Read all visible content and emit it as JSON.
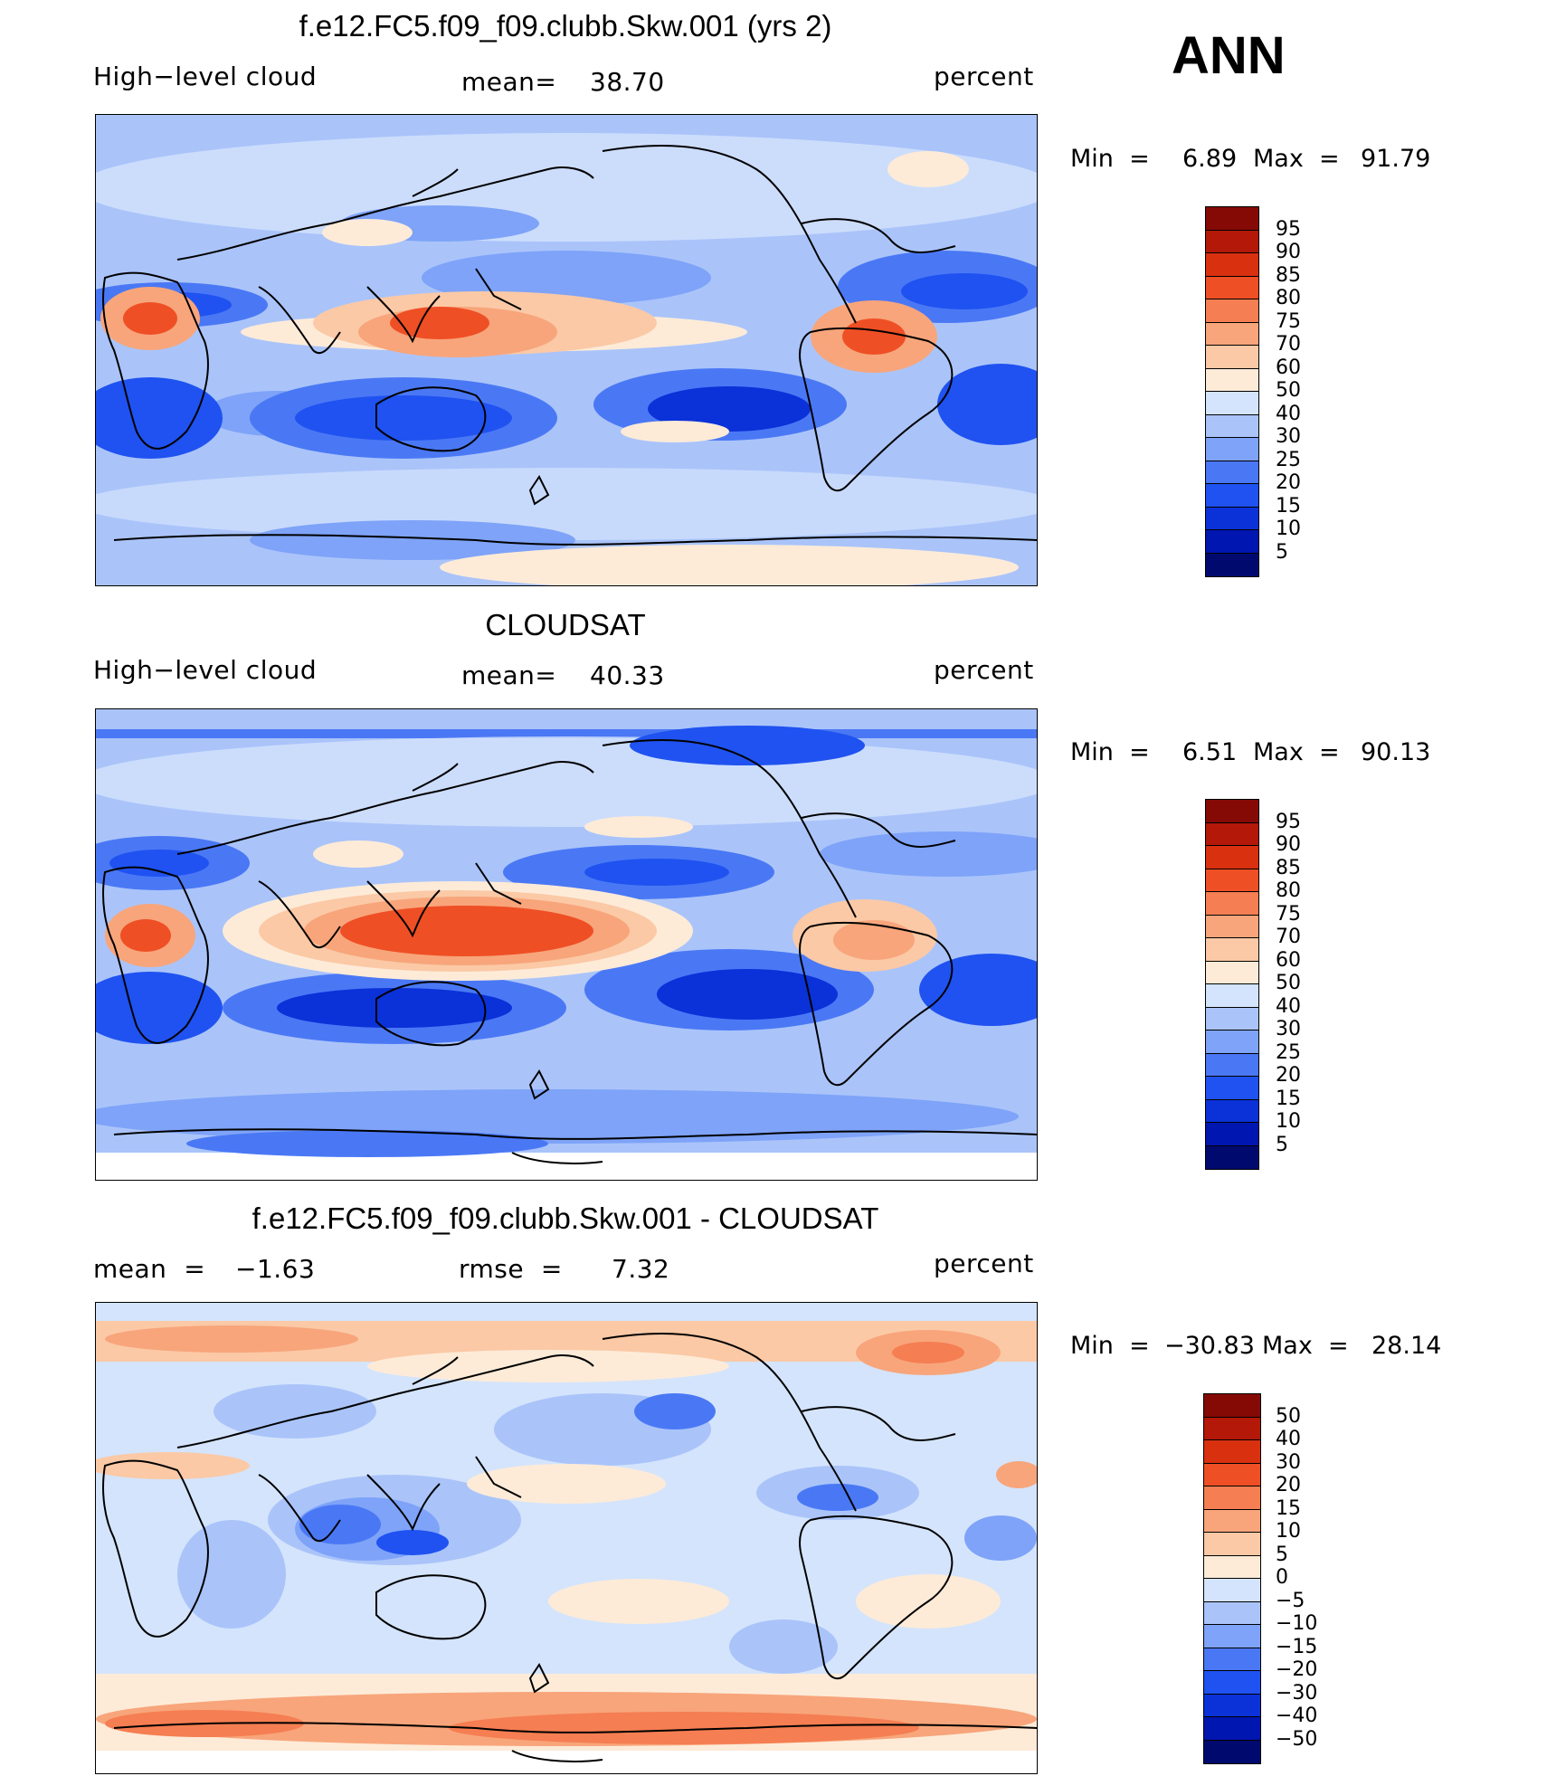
{
  "season": "ANN",
  "units": "percent",
  "colors": {
    "abs_scale": [
      "#000a6e",
      "#0016b0",
      "#0a32d8",
      "#1f52f0",
      "#4a78f5",
      "#7ea3f8",
      "#aac4fa",
      "#d4e4fc",
      "#fdebd8",
      "#fbc9a6",
      "#f8a57b",
      "#f57e52",
      "#ef4f25",
      "#d93010",
      "#b31808",
      "#850a06"
    ],
    "diff_scale": [
      "#000a6e",
      "#0016b0",
      "#0a32d8",
      "#1f52f0",
      "#4a78f5",
      "#7ea3f8",
      "#aac4fa",
      "#d4e4fc",
      "#fdebd8",
      "#fbc9a6",
      "#f8a57b",
      "#f57e52",
      "#ef4f25",
      "#d93010",
      "#b31808",
      "#850a06"
    ]
  },
  "panels": [
    {
      "title": "f.e12.FC5.f09_f09.clubb.Skw.001 (yrs 2)",
      "variable": "High−level cloud",
      "mean_label": "mean=",
      "mean_value": "38.70",
      "units": "percent",
      "min_label": "Min  =",
      "min_value": "6.89",
      "max_label": "Max  =",
      "max_value": "91.79",
      "levels": [
        "95",
        "90",
        "85",
        "80",
        "75",
        "70",
        "60",
        "50",
        "40",
        "30",
        "25",
        "20",
        "15",
        "10",
        "5"
      ]
    },
    {
      "title": "CLOUDSAT",
      "variable": "High−level cloud",
      "mean_label": "mean=",
      "mean_value": "40.33",
      "units": "percent",
      "min_label": "Min  =",
      "min_value": "6.51",
      "max_label": "Max  =",
      "max_value": "90.13",
      "levels": [
        "95",
        "90",
        "85",
        "80",
        "75",
        "70",
        "60",
        "50",
        "40",
        "30",
        "25",
        "20",
        "15",
        "10",
        "5"
      ]
    },
    {
      "title": "f.e12.FC5.f09_f09.clubb.Skw.001 - CLOUDSAT",
      "mean_label": "mean  =",
      "mean_value": "−1.63",
      "rmse_label": "rmse  =",
      "rmse_value": "7.32",
      "units": "percent",
      "min_label": "Min  =",
      "min_value": "−30.83",
      "max_label": "Max  =",
      "max_value": "28.14",
      "levels": [
        "50",
        "40",
        "30",
        "20",
        "15",
        "10",
        "5",
        "0",
        "−5",
        "−10",
        "−15",
        "−20",
        "−30",
        "−40",
        "−50"
      ]
    }
  ]
}
